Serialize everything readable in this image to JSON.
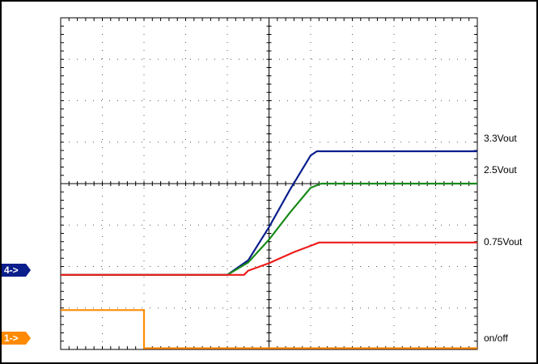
{
  "chart_data": {
    "type": "line",
    "grid": true,
    "x": {
      "divisions": 10,
      "range": [
        0,
        10
      ]
    },
    "y": {
      "divisions": 8,
      "range": [
        0,
        8
      ]
    },
    "series": [
      {
        "name": "3.3Vout",
        "color": "#0a1e8c",
        "points": [
          [
            0,
            1.8
          ],
          [
            4.0,
            1.8
          ],
          [
            4.5,
            2.15
          ],
          [
            5.0,
            2.95
          ],
          [
            5.5,
            3.85
          ],
          [
            6.0,
            4.68
          ],
          [
            6.15,
            4.78
          ],
          [
            10,
            4.78
          ]
        ]
      },
      {
        "name": "2.5Vout",
        "color": "#1a8a1a",
        "points": [
          [
            0,
            1.8
          ],
          [
            4.0,
            1.8
          ],
          [
            4.5,
            2.1
          ],
          [
            5.0,
            2.65
          ],
          [
            5.5,
            3.3
          ],
          [
            6.0,
            3.9
          ],
          [
            6.25,
            4.0
          ],
          [
            10,
            4.0
          ]
        ]
      },
      {
        "name": "0.75Vout",
        "color": "#ee1b1b",
        "points": [
          [
            0,
            1.8
          ],
          [
            3.85,
            1.8
          ],
          [
            4.4,
            1.8
          ],
          [
            4.5,
            1.9
          ],
          [
            5.0,
            2.08
          ],
          [
            5.6,
            2.35
          ],
          [
            6.05,
            2.52
          ],
          [
            6.2,
            2.58
          ],
          [
            10,
            2.58
          ]
        ]
      },
      {
        "name": "on/off",
        "color": "#ff8a00",
        "points": [
          [
            0,
            0.95
          ],
          [
            2.0,
            0.95
          ],
          [
            2.0,
            0.03
          ],
          [
            10,
            0.03
          ]
        ]
      }
    ],
    "channel_markers": [
      {
        "label": "4->",
        "channel": "3.3Vout",
        "color": "#0a1e8c"
      },
      {
        "label": "1->",
        "channel": "on/off",
        "color": "#ff8a00"
      }
    ]
  }
}
